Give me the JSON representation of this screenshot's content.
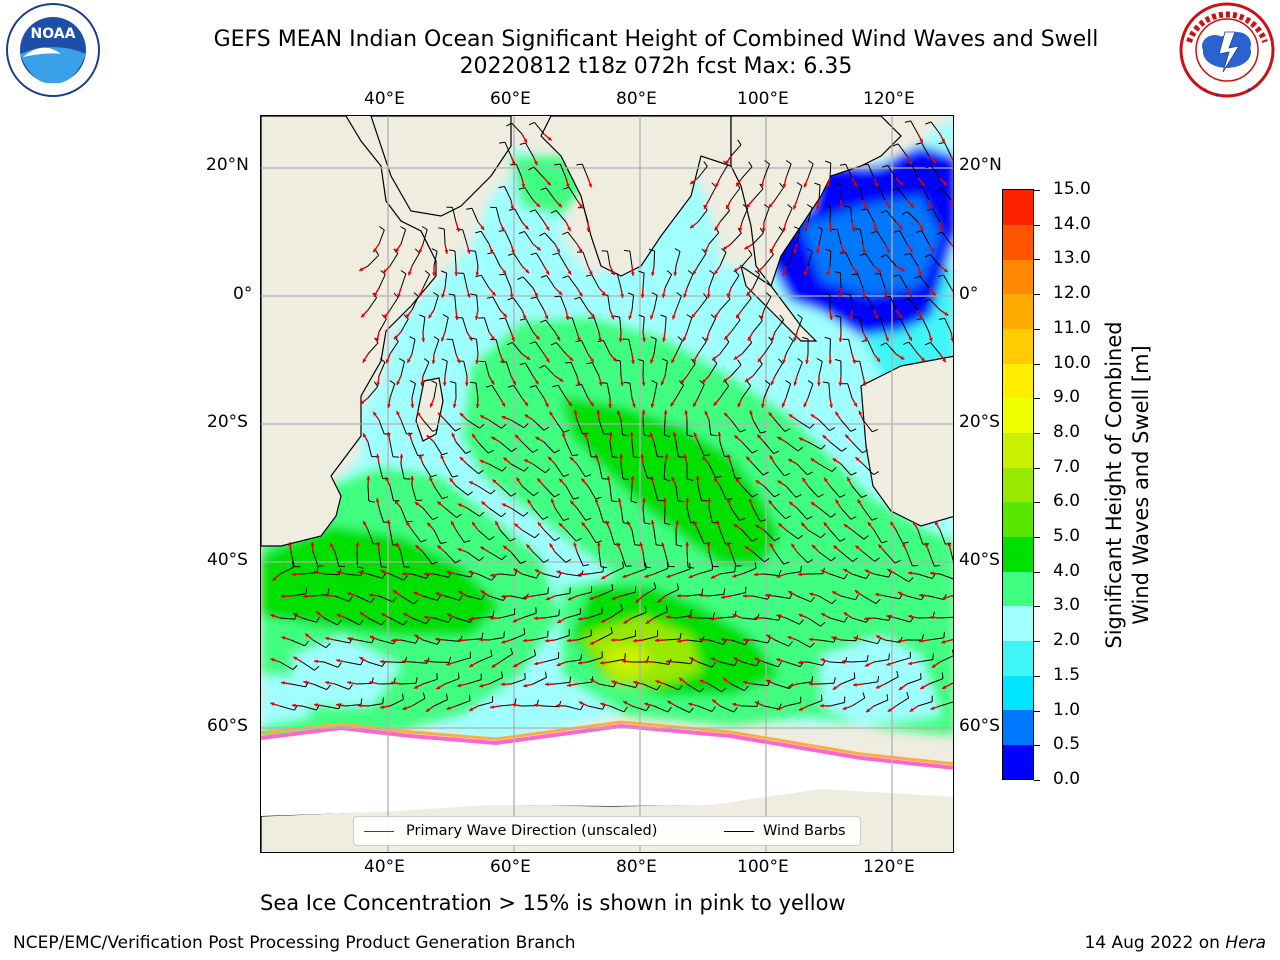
{
  "title": {
    "line1": "GEFS MEAN Indian Ocean Significant Height of Combined Wind Waves and Swell",
    "line2": "20220812 t18z 072h fcst   Max: 6.35"
  },
  "logos": {
    "noaa": {
      "label": "NOAA",
      "icon": "noaa-logo"
    },
    "nws": {
      "icon": "nws-logo"
    }
  },
  "map": {
    "longitude_ticks": [
      "40°E",
      "60°E",
      "80°E",
      "100°E",
      "120°E"
    ],
    "latitude_ticks_left": [
      "20°N",
      "0°",
      "20°S",
      "40°S",
      "60°S"
    ],
    "latitude_ticks_right": [
      "20°N",
      "0°",
      "20°S",
      "40°S",
      "60°S"
    ],
    "lon_range": [
      20,
      130
    ],
    "lat_range": [
      -73,
      27
    ],
    "grid": true,
    "colors": {
      "land": "#efece0",
      "wave_arrow": "#e00000",
      "wind_barb": "#000000",
      "ice": "#ff66cc"
    }
  },
  "colorbar": {
    "label_line1": "Significant Height of Combined",
    "label_line2": "Wind Waves and Swell [m]",
    "ticks": [
      "15.0",
      "14.0",
      "13.0",
      "12.0",
      "11.0",
      "10.0",
      "9.0",
      "8.0",
      "7.0",
      "6.0",
      "5.0",
      "4.0",
      "3.0",
      "2.0",
      "1.5",
      "1.0",
      "0.5",
      "0.0"
    ],
    "colors_bottom_to_top": [
      "#0000ff",
      "#0077ff",
      "#00e5ff",
      "#40f5f5",
      "#a0ffff",
      "#40ff80",
      "#00e000",
      "#58e800",
      "#98e800",
      "#c8f000",
      "#f0ff00",
      "#ffee00",
      "#ffcc00",
      "#ffaa00",
      "#ff8800",
      "#ff5500",
      "#ff2200"
    ]
  },
  "legend": {
    "wave_direction": "Primary Wave Direction (unscaled)",
    "wind_barbs": "Wind Barbs"
  },
  "ice_note": "Sea Ice Concentration > 15% is shown in pink to yellow",
  "footer": {
    "left": "NCEP/EMC/Verification Post Processing Product Generation Branch",
    "right_date": "14 Aug 2022 on ",
    "right_host": "Hera"
  }
}
